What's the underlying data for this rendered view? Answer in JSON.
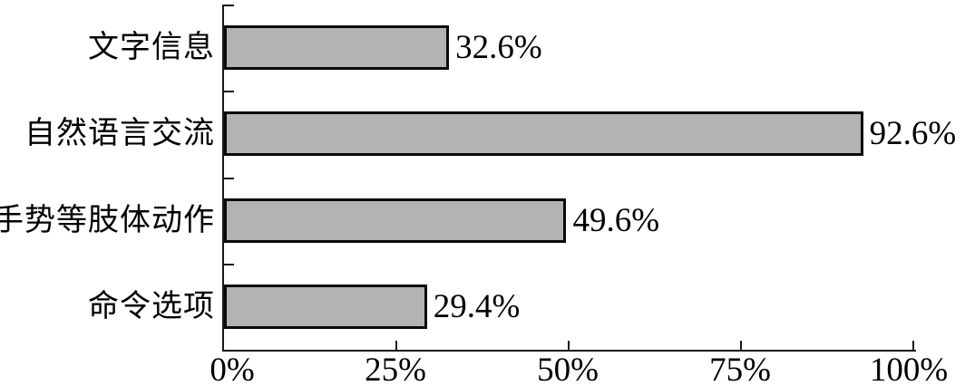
{
  "chart_data": {
    "type": "bar",
    "orientation": "horizontal",
    "categories": [
      "文字信息",
      "自然语言交流",
      "手势等肢体动作",
      "命令选项"
    ],
    "values": [
      32.6,
      92.6,
      49.6,
      29.4
    ],
    "value_labels": [
      "32.6%",
      "92.6%",
      "49.6%",
      "29.4%"
    ],
    "x_ticks": [
      "0%",
      "25%",
      "50%",
      "75%",
      "100%"
    ],
    "xlim": [
      0,
      100
    ],
    "title": "",
    "xlabel": "",
    "ylabel": "",
    "legend": null,
    "grid": false,
    "bar_fill_color": "#b3b3b3",
    "bar_border_color": "#0a0a0a",
    "axis_color": "#1a1a1a",
    "text_color": "#000000"
  }
}
